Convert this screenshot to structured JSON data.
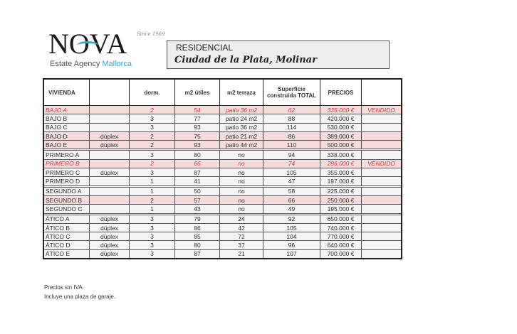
{
  "logo": {
    "brand": "NOVA",
    "since": "Since 1969",
    "subtitle_a": "Estate Agency",
    "subtitle_b": "Mallorca"
  },
  "title": {
    "line1": "RESIDENCIAL",
    "line2": "Ciudad de la Plata, Molinar"
  },
  "table": {
    "headers": [
      "VIVIENDA",
      "",
      "dorm.",
      "m2 útiles",
      "m2 terraza",
      "Superficie construida TOTAL",
      "PRECIOS",
      ""
    ],
    "groups": [
      [
        [
          "BAJO A",
          "",
          "2",
          "54",
          "patio 36 m2",
          "62",
          "335.000 €",
          "VENDIDO",
          "sold"
        ],
        [
          "BAJO B",
          "",
          "3",
          "77",
          "patio 24 m2",
          "88",
          "420.000 €",
          "",
          "normal"
        ],
        [
          "BAJO C",
          "",
          "3",
          "93",
          "patio 36 m2",
          "114",
          "530.000 €",
          "",
          "normal"
        ],
        [
          "BAJO D",
          "dúplex",
          "2",
          "75",
          "patio 21 m2",
          "86",
          "389.000 €",
          "",
          "hl"
        ],
        [
          "BAJO E",
          "dúplex",
          "2",
          "93",
          "patio 44 m2",
          "110",
          "500.000 €",
          "",
          "hl"
        ]
      ],
      [
        [
          "PRIMERO A",
          "",
          "3",
          "80",
          "no",
          "94",
          "338.000 €",
          "",
          "normal"
        ],
        [
          "PRIMERO B",
          "",
          "2",
          "66",
          "no",
          "74",
          "286.000 €",
          "VENDIDO",
          "sold"
        ],
        [
          "PRIMERO C",
          "dúplex",
          "3",
          "87",
          "no",
          "105",
          "355.000 €",
          "",
          "normal"
        ],
        [
          "PRIMERO D",
          "",
          "1",
          "41",
          "no",
          "47",
          "197.000 €",
          "",
          "normal"
        ]
      ],
      [
        [
          "SEGUNDO A",
          "",
          "1",
          "50",
          "no",
          "58",
          "225.000 €",
          "",
          "normal"
        ],
        [
          "SEGUNDO B",
          "",
          "2",
          "57",
          "no",
          "66",
          "250.000 €",
          "",
          "hl"
        ],
        [
          "SEGUNDO C",
          "",
          "1",
          "43",
          "no",
          "49",
          "195.000 €",
          "",
          "normal"
        ]
      ],
      [
        [
          "ÁTICO A",
          "dúplex",
          "3",
          "79",
          "24",
          "92",
          "650.000 €",
          "",
          "normal"
        ],
        [
          "ÁTICO B",
          "dúplex",
          "3",
          "86",
          "42",
          "105",
          "740.000 €",
          "",
          "normal"
        ],
        [
          "ÁTICO C",
          "dúplex",
          "3",
          "85",
          "72",
          "104",
          "770.000 €",
          "",
          "normal"
        ],
        [
          "ÁTICO D",
          "dúplex",
          "3",
          "80",
          "37",
          "96",
          "640.000 €",
          "",
          "normal"
        ],
        [
          "ÁTICO E",
          "dúplex",
          "3",
          "87",
          "21",
          "107",
          "700.000 €",
          "",
          "normal"
        ]
      ]
    ]
  },
  "notes": [
    "Precios sin IVA",
    "Incluye una plaza de garaje."
  ],
  "colors": {
    "sold": "#d23a3a",
    "highlight": "#f4dcdc",
    "accent": "#3aa6c9"
  }
}
